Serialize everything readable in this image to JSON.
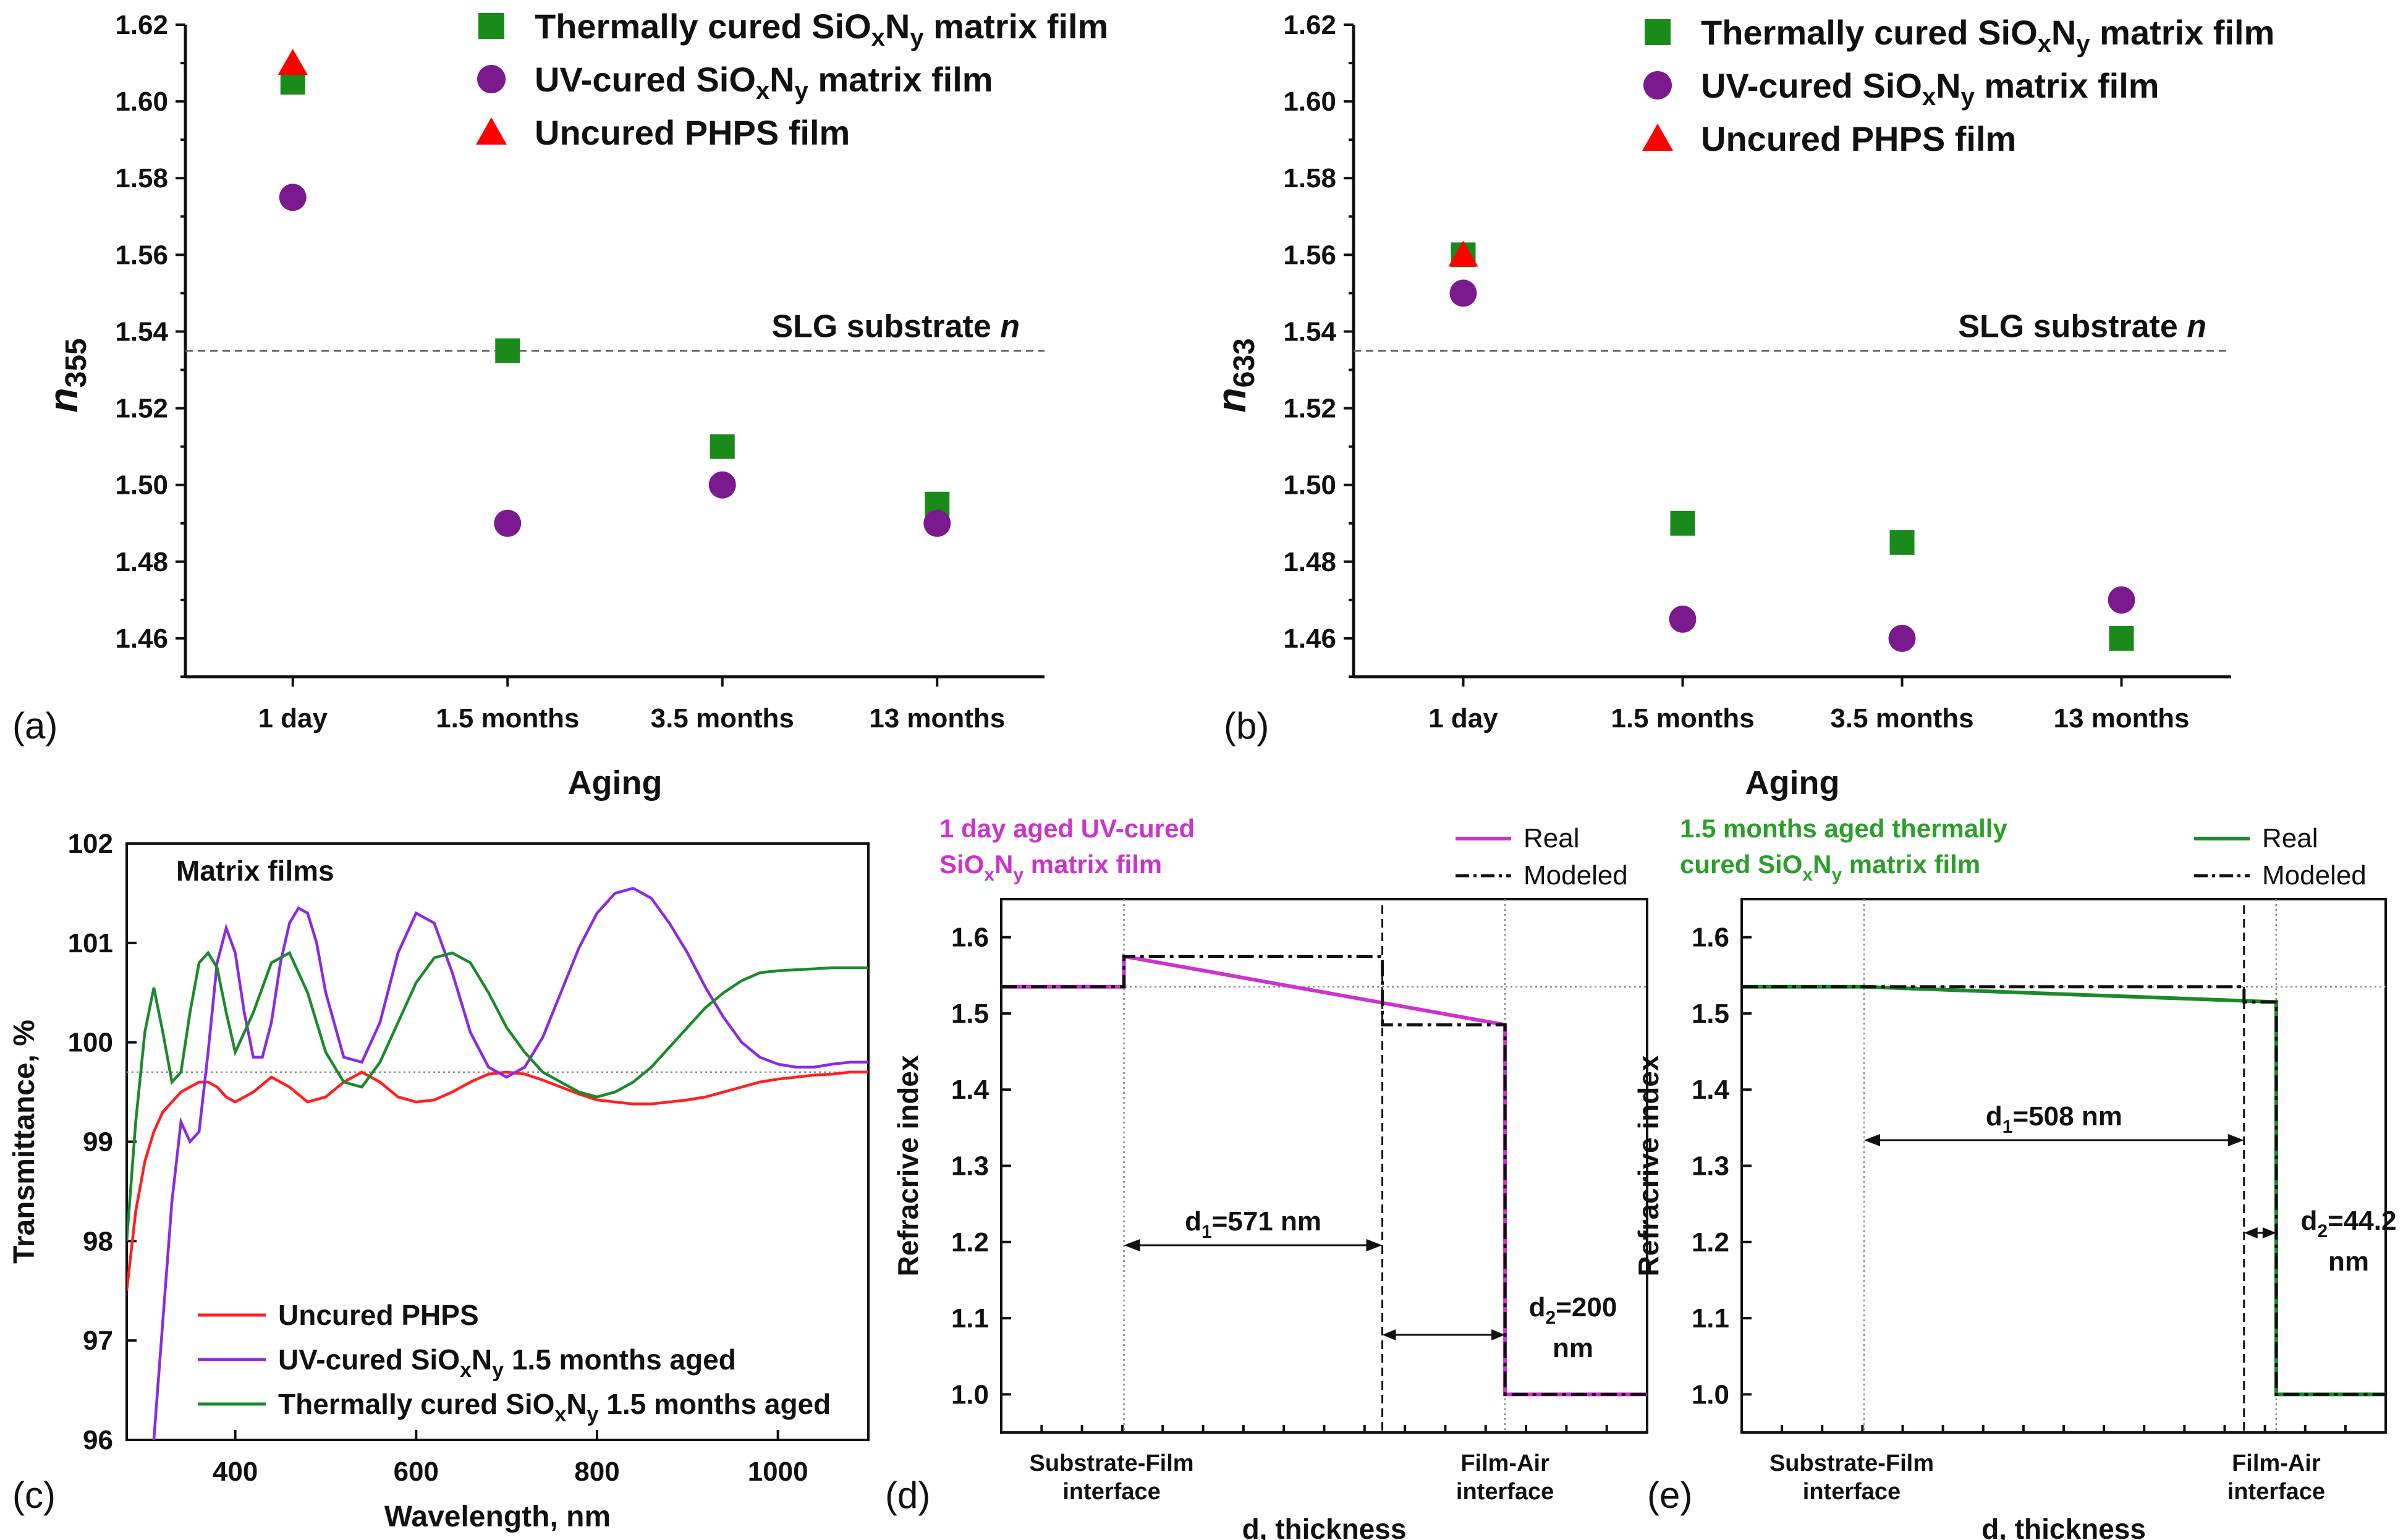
{
  "chart_data": [
    {
      "panel": "(a)",
      "type": "scatter",
      "ylabel_base": "n",
      "ylabel_sub": "355",
      "xlabel": "Aging",
      "categories": [
        "1 day",
        "1.5 months",
        "3.5 months",
        "13 months"
      ],
      "ylim": [
        1.45,
        1.62
      ],
      "yticks": [
        "1.46",
        "1.48",
        "1.50",
        "1.52",
        "1.54",
        "1.56",
        "1.58",
        "1.60",
        "1.62"
      ],
      "reference": {
        "label_text": "SLG substrate ",
        "label_var": "n",
        "value": 1.535
      },
      "series": [
        {
          "name": "thermal",
          "legend": [
            "Thermally cured SiO",
            "x",
            "N",
            "y",
            " matrix film"
          ],
          "marker": "square",
          "color": "#1a8a1a",
          "values": [
            1.605,
            1.535,
            1.51,
            1.495
          ]
        },
        {
          "name": "uv",
          "legend": [
            "UV-cured SiO",
            "x",
            "N",
            "y",
            " matrix film"
          ],
          "marker": "circle",
          "color": "#7b1a8f",
          "values": [
            1.575,
            1.49,
            1.5,
            1.49
          ]
        },
        {
          "name": "uncured",
          "legend": [
            "Uncured PHPS film"
          ],
          "marker": "triangle",
          "color": "#ff0000",
          "values": [
            1.61,
            null,
            null,
            null
          ]
        }
      ]
    },
    {
      "panel": "(b)",
      "type": "scatter",
      "ylabel_base": "n",
      "ylabel_sub": "633",
      "xlabel": "Aging",
      "categories": [
        "1 day",
        "1.5 months",
        "3.5 months",
        "13 months"
      ],
      "ylim": [
        1.45,
        1.62
      ],
      "yticks": [
        "1.46",
        "1.48",
        "1.50",
        "1.52",
        "1.54",
        "1.56",
        "1.58",
        "1.60",
        "1.62"
      ],
      "reference": {
        "label_text": "SLG substrate ",
        "label_var": "n",
        "value": 1.535
      },
      "series": [
        {
          "name": "thermal",
          "legend": [
            "Thermally cured SiO",
            "x",
            "N",
            "y",
            " matrix film"
          ],
          "marker": "square",
          "color": "#1a8a1a",
          "values": [
            1.56,
            1.49,
            1.485,
            1.46
          ]
        },
        {
          "name": "uv",
          "legend": [
            "UV-cured SiO",
            "x",
            "N",
            "y",
            " matrix film"
          ],
          "marker": "circle",
          "color": "#7b1a8f",
          "values": [
            1.55,
            1.465,
            1.46,
            1.47
          ]
        },
        {
          "name": "uncured",
          "legend": [
            "Uncured PHPS film"
          ],
          "marker": "triangle",
          "color": "#ff0000",
          "values": [
            1.56,
            null,
            null,
            null
          ]
        }
      ]
    },
    {
      "panel": "(c)",
      "type": "line",
      "title": "Matrix films",
      "xlabel": "Wavelength, nm",
      "ylabel": "Transmittance, %",
      "xlim": [
        280,
        1100
      ],
      "ylim": [
        96,
        102
      ],
      "xticks": [
        400,
        600,
        800,
        1000
      ],
      "yticks": [
        96,
        97,
        98,
        99,
        100,
        101,
        102
      ],
      "reference_value": 99.7,
      "series": [
        {
          "name": "uncured",
          "legend": [
            "Uncured PHPS"
          ],
          "color": "#ff2020",
          "x": [
            280,
            290,
            300,
            310,
            320,
            330,
            340,
            350,
            360,
            370,
            380,
            390,
            400,
            420,
            440,
            460,
            480,
            500,
            520,
            540,
            560,
            580,
            600,
            620,
            640,
            660,
            680,
            700,
            720,
            740,
            760,
            780,
            800,
            820,
            840,
            860,
            880,
            900,
            920,
            940,
            960,
            980,
            1000,
            1020,
            1040,
            1060,
            1080,
            1100
          ],
          "y": [
            97.5,
            98.3,
            98.8,
            99.1,
            99.3,
            99.4,
            99.5,
            99.55,
            99.6,
            99.6,
            99.55,
            99.45,
            99.4,
            99.5,
            99.65,
            99.55,
            99.4,
            99.45,
            99.6,
            99.7,
            99.6,
            99.45,
            99.4,
            99.42,
            99.5,
            99.6,
            99.68,
            99.7,
            99.68,
            99.62,
            99.55,
            99.48,
            99.42,
            99.4,
            99.38,
            99.38,
            99.4,
            99.42,
            99.45,
            99.5,
            99.55,
            99.6,
            99.63,
            99.65,
            99.67,
            99.68,
            99.7,
            99.7
          ]
        },
        {
          "name": "uv",
          "legend": [
            "UV-cured SiO",
            "x",
            "N",
            "y",
            " 1.5 months aged"
          ],
          "color": "#8a2be2",
          "x": [
            310,
            320,
            330,
            340,
            350,
            360,
            370,
            380,
            390,
            400,
            410,
            420,
            430,
            440,
            450,
            460,
            470,
            480,
            490,
            500,
            520,
            540,
            560,
            580,
            600,
            620,
            640,
            660,
            680,
            700,
            720,
            740,
            760,
            780,
            800,
            820,
            840,
            860,
            880,
            900,
            920,
            940,
            960,
            980,
            1000,
            1020,
            1040,
            1060,
            1080,
            1100
          ],
          "y": [
            96.0,
            97.2,
            98.4,
            99.2,
            99.0,
            99.1,
            99.9,
            100.8,
            101.15,
            100.9,
            100.3,
            99.85,
            99.85,
            100.2,
            100.8,
            101.2,
            101.35,
            101.3,
            101.0,
            100.5,
            99.85,
            99.8,
            100.2,
            100.9,
            101.3,
            101.2,
            100.7,
            100.1,
            99.75,
            99.65,
            99.75,
            100.05,
            100.5,
            100.95,
            101.3,
            101.5,
            101.55,
            101.45,
            101.2,
            100.9,
            100.55,
            100.25,
            100.0,
            99.85,
            99.78,
            99.75,
            99.75,
            99.78,
            99.8,
            99.8
          ]
        },
        {
          "name": "thermal",
          "legend": [
            "Thermally cured SiO",
            "x",
            "N",
            "y",
            " 1.5 months aged"
          ],
          "color": "#1a8a2a",
          "x": [
            280,
            290,
            300,
            310,
            320,
            330,
            340,
            350,
            360,
            370,
            380,
            390,
            400,
            420,
            440,
            460,
            480,
            500,
            520,
            540,
            560,
            580,
            600,
            620,
            640,
            660,
            680,
            700,
            720,
            740,
            760,
            780,
            800,
            820,
            840,
            860,
            880,
            900,
            920,
            940,
            960,
            980,
            1000,
            1020,
            1040,
            1060,
            1080,
            1100
          ],
          "y": [
            98.0,
            99.2,
            100.1,
            100.55,
            100.1,
            99.6,
            99.7,
            100.3,
            100.8,
            100.9,
            100.75,
            100.3,
            99.9,
            100.3,
            100.8,
            100.9,
            100.5,
            99.9,
            99.6,
            99.55,
            99.8,
            100.2,
            100.6,
            100.85,
            100.9,
            100.8,
            100.5,
            100.15,
            99.9,
            99.7,
            99.6,
            99.5,
            99.45,
            99.5,
            99.6,
            99.75,
            99.95,
            100.15,
            100.35,
            100.5,
            100.62,
            100.7,
            100.72,
            100.73,
            100.74,
            100.75,
            100.75,
            100.75
          ]
        }
      ]
    },
    {
      "panel": "(d)",
      "type": "line",
      "title_lines": [
        [
          "1 day aged UV-cured"
        ],
        [
          "SiO",
          "x",
          "N",
          "y",
          " matrix film"
        ]
      ],
      "title_color": "#cc33cc",
      "xlabel": "d, thickness",
      "ylabel": "Refracrive index",
      "ylim": [
        0.95,
        1.65
      ],
      "yticks": [
        "1.0",
        "1.1",
        "1.2",
        "1.3",
        "1.4",
        "1.5",
        "1.6"
      ],
      "reference_value": 1.535,
      "xcat": [
        "Substrate-Film",
        "interface",
        "Film-Air",
        "interface"
      ],
      "d1": [
        "d",
        "1",
        "=571 nm"
      ],
      "d2": [
        "d",
        "2",
        "=200",
        "nm"
      ],
      "legend": [
        "Real",
        "Modeled"
      ],
      "real": {
        "color": "#cc33cc",
        "x": [
          0,
          0.19,
          0.19,
          0.78,
          0.78,
          1.0
        ],
        "y": [
          1.535,
          1.535,
          1.575,
          1.485,
          1.0,
          1.0
        ]
      },
      "modeled": {
        "x": [
          0,
          0.19,
          0.19,
          0.59,
          0.59,
          0.78,
          0.78,
          1.0
        ],
        "y": [
          1.535,
          1.535,
          1.575,
          1.575,
          1.485,
          1.485,
          1.0,
          1.0
        ]
      }
    },
    {
      "panel": "(e)",
      "type": "line",
      "title_lines": [
        [
          "1.5 months aged thermally"
        ],
        [
          "cured SiO",
          "x",
          "N",
          "y",
          " matrix film"
        ]
      ],
      "title_color": "#2aa02a",
      "xlabel": "d, thickness",
      "ylabel": "Refracrive index",
      "ylim": [
        0.95,
        1.65
      ],
      "yticks": [
        "1.0",
        "1.1",
        "1.2",
        "1.3",
        "1.4",
        "1.5",
        "1.6"
      ],
      "reference_value": 1.535,
      "xcat": [
        "Substrate-Film",
        "interface",
        "Film-Air",
        "interface"
      ],
      "d1": [
        "d",
        "1",
        "=508 nm"
      ],
      "d2": [
        "d",
        "2",
        "=44.2",
        "nm"
      ],
      "legend": [
        "Real",
        "Modeled"
      ],
      "real": {
        "color": "#1a8a2a",
        "x": [
          0,
          0.19,
          0.83,
          0.83,
          1.0
        ],
        "y": [
          1.535,
          1.535,
          1.515,
          1.0,
          1.0
        ]
      },
      "modeled": {
        "x": [
          0,
          0.19,
          0.19,
          0.78,
          0.78,
          0.83,
          0.83,
          1.0
        ],
        "y": [
          1.535,
          1.535,
          1.535,
          1.535,
          1.515,
          1.515,
          1.0,
          1.0
        ]
      }
    }
  ]
}
